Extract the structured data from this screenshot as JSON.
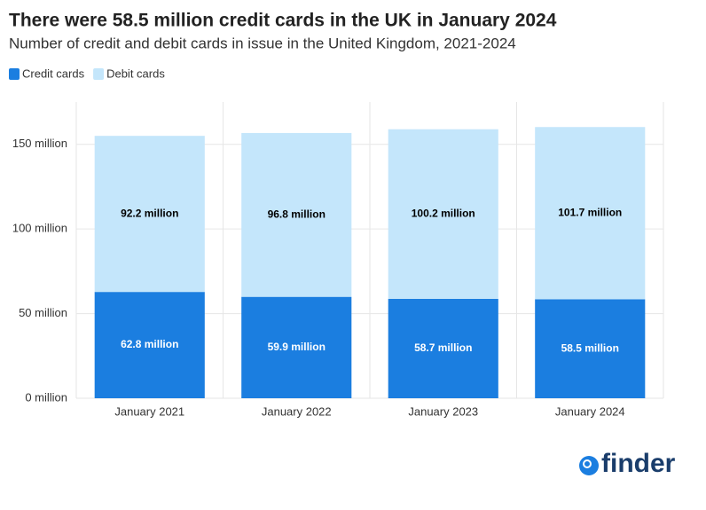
{
  "chart_data": {
    "type": "stacked_bar",
    "title": "There were 58.5 million credit cards in the UK in January 2024",
    "subtitle": "Number of credit and debit cards in issue in the United Kingdom, 2021-2024",
    "categories": [
      "January 2021",
      "January 2022",
      "January 2023",
      "January 2024"
    ],
    "series": [
      {
        "name": "Credit cards",
        "color": "#1b7ee0",
        "label_color": "#ffffff",
        "values": [
          62.8,
          59.9,
          58.7,
          58.5
        ],
        "value_labels": [
          "62.8 million",
          "59.9 million",
          "58.7 million",
          "58.5 million"
        ]
      },
      {
        "name": "Debit cards",
        "color": "#c4e6fb",
        "label_color": "#000000",
        "values": [
          92.2,
          96.8,
          100.2,
          101.7
        ],
        "value_labels": [
          "92.2 million",
          "96.8 million",
          "100.2 million",
          "101.7 million"
        ]
      }
    ],
    "ylim": [
      0,
      175
    ],
    "yticks": [
      {
        "value": 0,
        "label": "0 million"
      },
      {
        "value": 50,
        "label": "50 million"
      },
      {
        "value": 100,
        "label": "100 million"
      },
      {
        "value": 150,
        "label": "150 million"
      }
    ],
    "grid": true,
    "legend": "top-left",
    "logo": "finder"
  }
}
